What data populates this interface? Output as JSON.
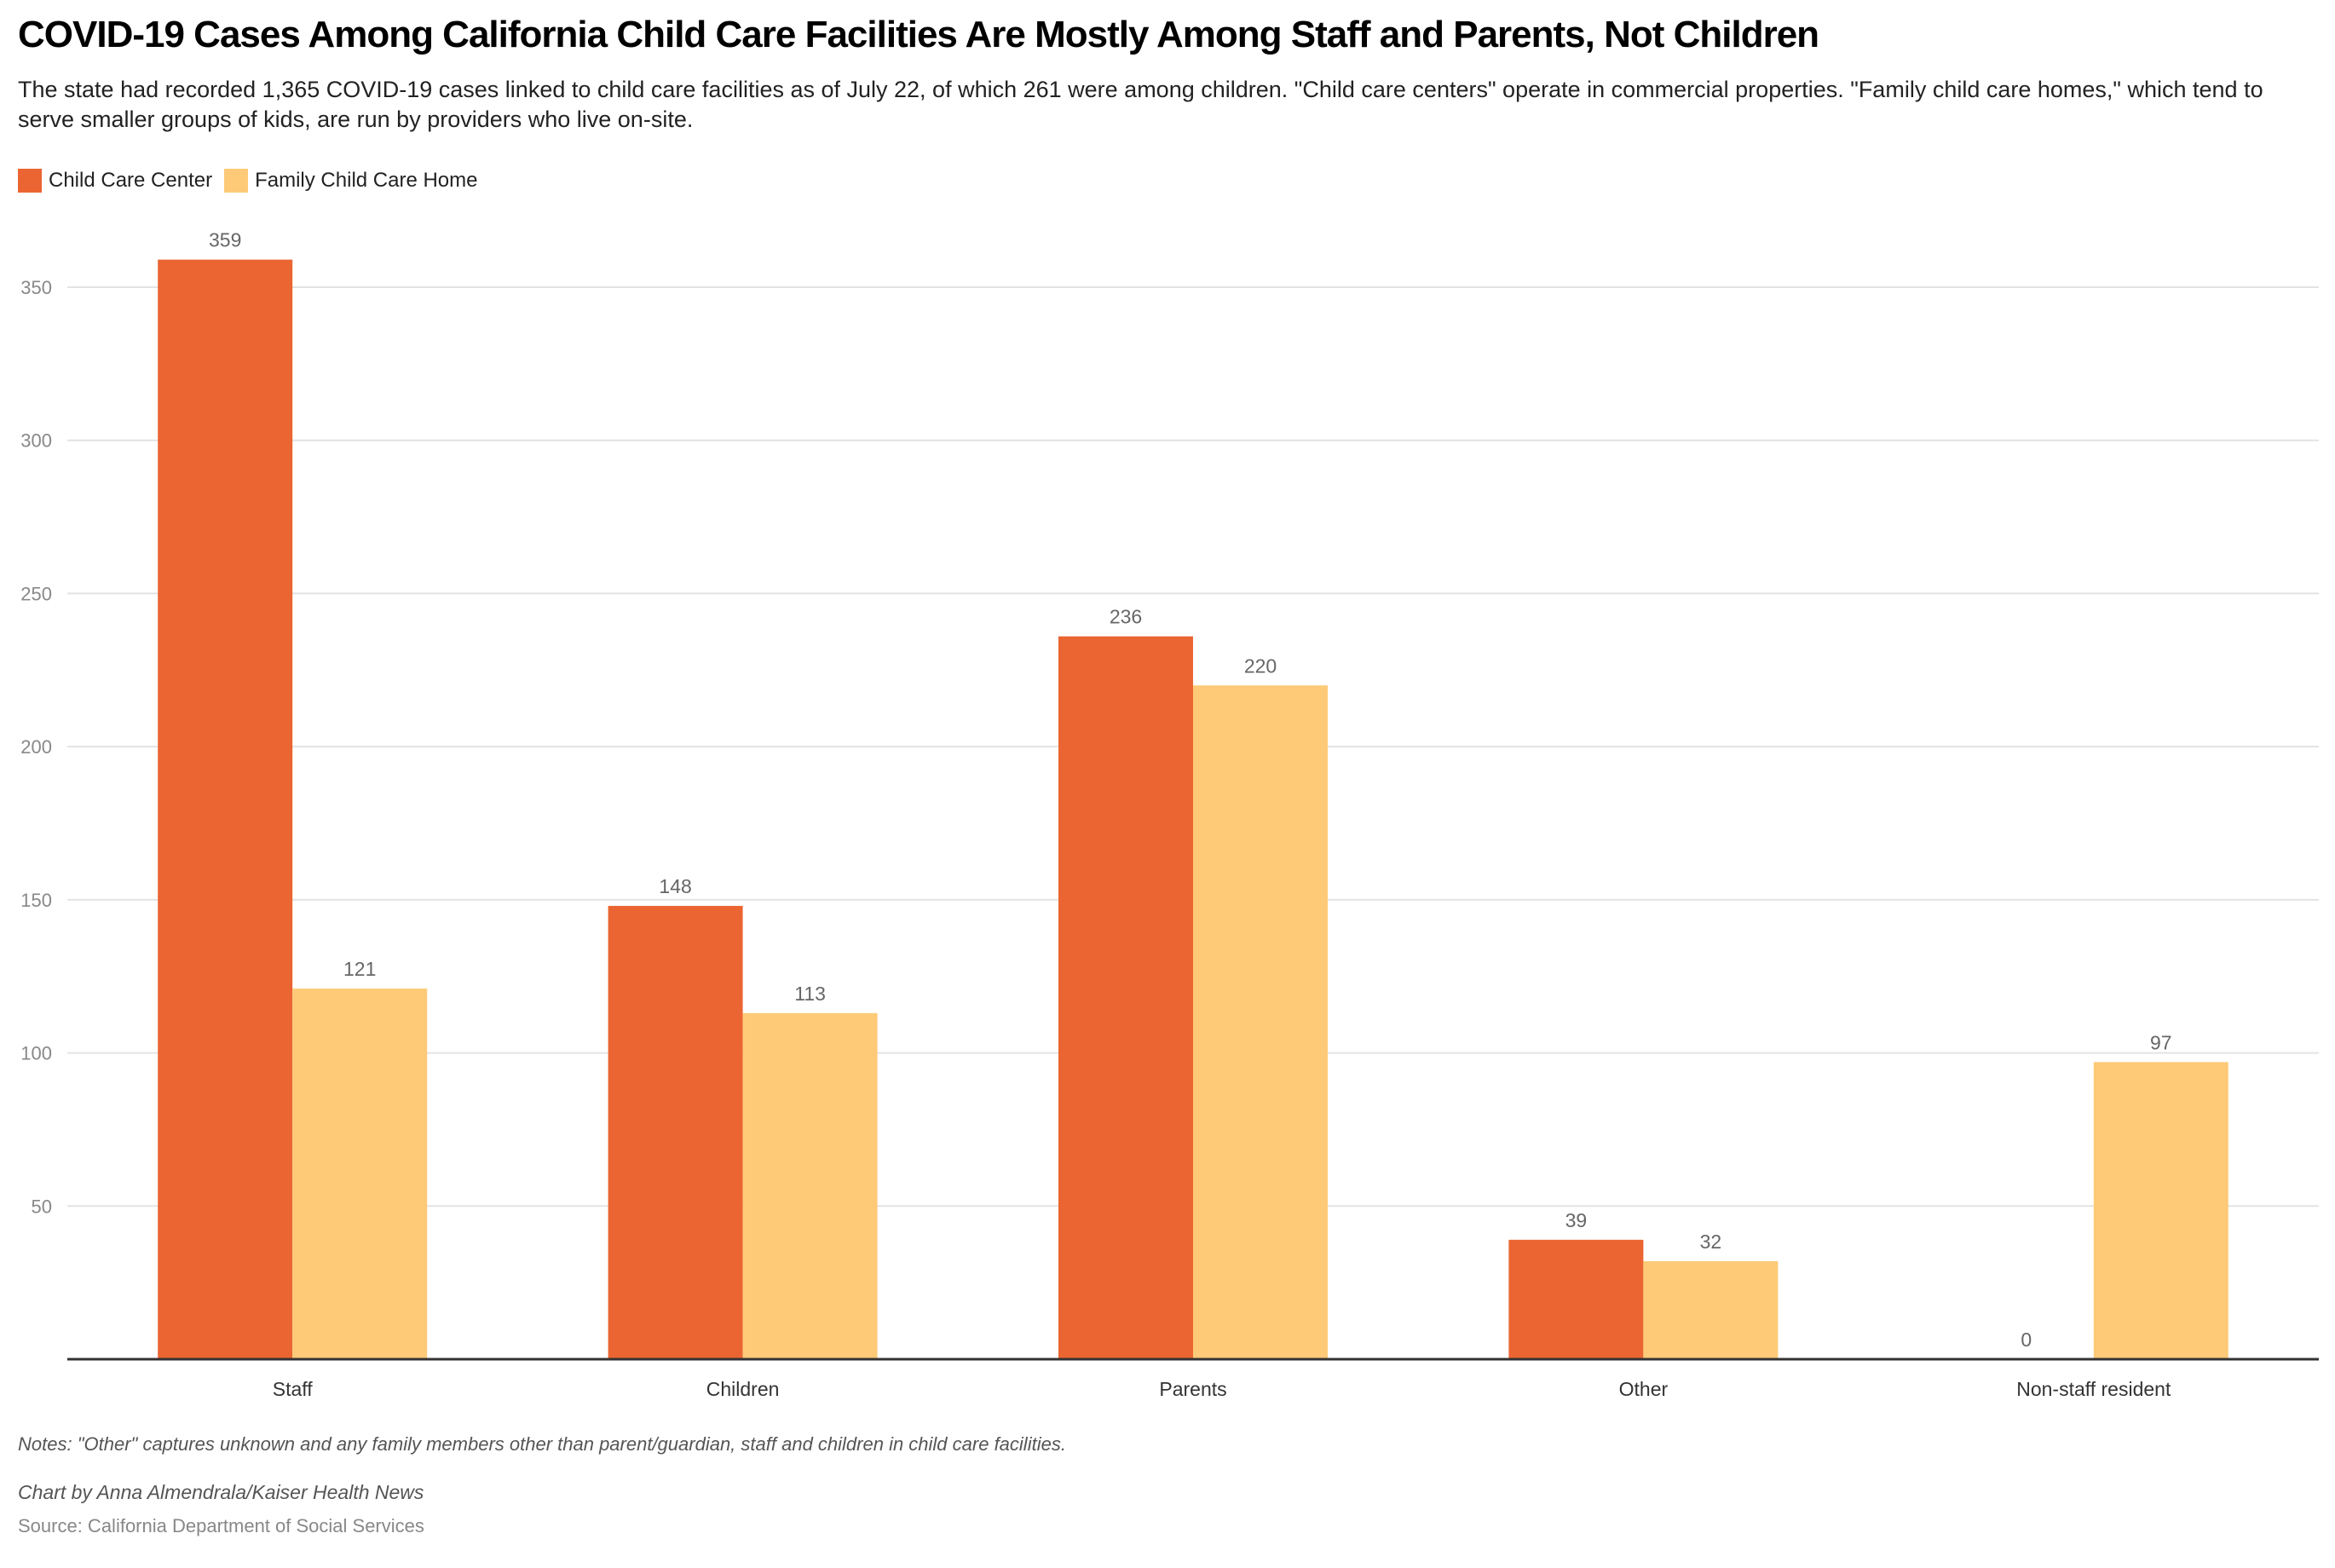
{
  "title": "COVID-19 Cases Among California Child Care Facilities Are Mostly Among Staff and Parents, Not Children",
  "subtitle": "The state had recorded 1,365 COVID-19 cases linked to child care facilities as of July 22, of which 261 were among children. \"Child care centers\" operate in commercial properties. \"Family child care homes,\" which tend to serve smaller groups of kids, are run by providers who live on-site.",
  "notes": "Notes: \"Other\" captures unknown and any family members other than parent/guardian, staff and children in child care facilities.",
  "credit": "Chart by Anna Almendrala/Kaiser Health News",
  "source": "Source: California Department of Social Services",
  "chart_data": {
    "type": "bar",
    "title": "COVID-19 Cases Among California Child Care Facilities Are Mostly Among Staff and Parents, Not Children",
    "xlabel": "",
    "ylabel": "",
    "ylim": [
      0,
      350
    ],
    "yticks": [
      50,
      100,
      150,
      200,
      250,
      300,
      350
    ],
    "grid": true,
    "legend_position": "top-left",
    "categories": [
      "Staff",
      "Children",
      "Parents",
      "Other",
      "Non-staff resident"
    ],
    "series": [
      {
        "name": "Child Care Center",
        "color": "#EB6532",
        "values": [
          359,
          148,
          236,
          39,
          0
        ]
      },
      {
        "name": "Family Child Care Home",
        "color": "#FECA78",
        "values": [
          121,
          113,
          220,
          32,
          97
        ]
      }
    ]
  }
}
